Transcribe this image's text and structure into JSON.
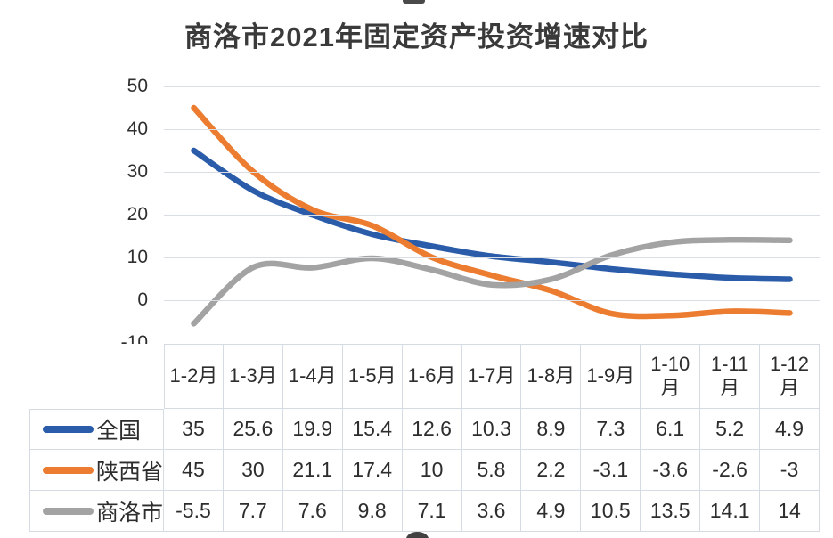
{
  "page": {
    "title": "商洛市2021年固定资产投资增速对比"
  },
  "chart_data": {
    "type": "line",
    "title": "商洛市2021年固定资产投资增速对比",
    "smooth": true,
    "grid": true,
    "legend_position": "table-left",
    "categories": [
      "1-2月",
      "1-3月",
      "1-4月",
      "1-5月",
      "1-6月",
      "1-7月",
      "1-8月",
      "1-9月",
      "1-10\n月",
      "1-11\n月",
      "1-12\n月"
    ],
    "series": [
      {
        "key": "national",
        "name": "全国",
        "color": "#2a5caa",
        "values": [
          35,
          25.6,
          19.9,
          15.4,
          12.6,
          10.3,
          8.9,
          7.3,
          6.1,
          5.2,
          4.9
        ]
      },
      {
        "key": "shaanxi",
        "name": "陕西省",
        "color": "#ec7c2f",
        "values": [
          45,
          30,
          21.1,
          17.4,
          10,
          5.8,
          2.2,
          -3.1,
          -3.6,
          -2.6,
          -3
        ]
      },
      {
        "key": "shangluo",
        "name": "商洛市",
        "color": "#a3a3a3",
        "values": [
          -5.5,
          7.7,
          7.6,
          9.8,
          7.1,
          3.6,
          4.9,
          10.5,
          13.5,
          14.1,
          14
        ]
      }
    ],
    "yticks": [
      50,
      40,
      30,
      20,
      10,
      0,
      -10
    ],
    "ylim": [
      -10,
      50
    ],
    "xlabel": "",
    "ylabel": ""
  },
  "colors": {
    "gridline": "#d9dee5",
    "table_border": "#d5dbe3",
    "text": "#2d2d2d",
    "background": "#ffffff"
  }
}
